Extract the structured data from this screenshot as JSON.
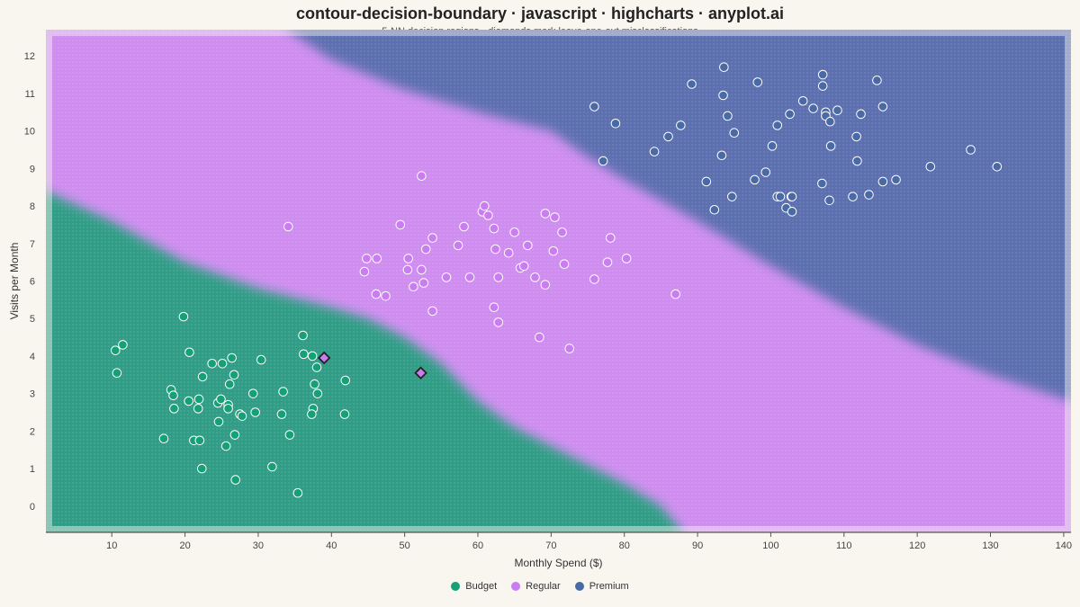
{
  "chart": {
    "title": "contour-decision-boundary · javascript · highcharts · anyplot.ai",
    "subtitle": "5-NN decision regions · diamonds mark leave-one-out misclassifications"
  },
  "chart_data": {
    "type": "scatter",
    "xlabel": "Monthly Spend ($)",
    "ylabel": "Visits per Month",
    "xlim": [
      1,
      141
    ],
    "ylim": [
      -0.7,
      12.7
    ],
    "xticks": [
      10,
      20,
      30,
      40,
      50,
      60,
      70,
      80,
      90,
      100,
      110,
      120,
      130,
      140
    ],
    "yticks": [
      0,
      1,
      2,
      3,
      4,
      5,
      6,
      7,
      8,
      9,
      10,
      11,
      12
    ],
    "grid": false,
    "legend_position": "bottom-center",
    "regions": {
      "description_free": true,
      "budget_regular_boundary": [
        [
          1,
          8.4
        ],
        [
          10,
          7.6
        ],
        [
          20,
          6.5
        ],
        [
          30,
          5.8
        ],
        [
          40,
          5.3
        ],
        [
          45,
          5.0
        ],
        [
          50,
          4.5
        ],
        [
          55,
          3.8
        ],
        [
          60,
          2.8
        ],
        [
          65,
          2.1
        ],
        [
          70,
          1.6
        ],
        [
          75,
          1.1
        ],
        [
          80,
          0.6
        ],
        [
          85,
          0.0
        ],
        [
          88,
          -0.7
        ]
      ],
      "regular_premium_boundary": [
        [
          34,
          12.7
        ],
        [
          40,
          11.9
        ],
        [
          50,
          11.1
        ],
        [
          60,
          10.5
        ],
        [
          70,
          10.0
        ],
        [
          75,
          9.3
        ],
        [
          80,
          8.7
        ],
        [
          90,
          7.6
        ],
        [
          100,
          6.4
        ],
        [
          110,
          5.3
        ],
        [
          120,
          4.3
        ],
        [
          130,
          3.5
        ],
        [
          141,
          2.8
        ]
      ]
    },
    "series": [
      {
        "name": "Budget",
        "color": "#16a075",
        "points": [
          [
            10.5,
            4.15
          ],
          [
            11.5,
            4.3
          ],
          [
            10.7,
            3.55
          ],
          [
            19.8,
            5.05
          ],
          [
            20.6,
            4.1
          ],
          [
            18.1,
            3.1
          ],
          [
            18.4,
            2.95
          ],
          [
            18.5,
            2.6
          ],
          [
            20.5,
            2.8
          ],
          [
            21.9,
            2.85
          ],
          [
            21.8,
            2.6
          ],
          [
            22.4,
            3.45
          ],
          [
            23.7,
            3.8
          ],
          [
            25.1,
            3.8
          ],
          [
            26.4,
            3.95
          ],
          [
            26.7,
            3.5
          ],
          [
            26.1,
            3.25
          ],
          [
            24.5,
            2.75
          ],
          [
            24.9,
            2.85
          ],
          [
            25.9,
            2.7
          ],
          [
            25.9,
            2.6
          ],
          [
            27.5,
            2.45
          ],
          [
            27.8,
            2.4
          ],
          [
            29.3,
            3.0
          ],
          [
            29.6,
            2.5
          ],
          [
            30.4,
            3.9
          ],
          [
            24.6,
            2.25
          ],
          [
            25.6,
            1.6
          ],
          [
            26.8,
            1.9
          ],
          [
            21.2,
            1.75
          ],
          [
            22.0,
            1.75
          ],
          [
            17.1,
            1.8
          ],
          [
            22.3,
            1.0
          ],
          [
            26.9,
            0.7
          ],
          [
            31.9,
            1.05
          ],
          [
            33.2,
            2.45
          ],
          [
            33.4,
            3.05
          ],
          [
            34.3,
            1.9
          ],
          [
            35.4,
            0.35
          ],
          [
            36.1,
            4.55
          ],
          [
            36.2,
            4.05
          ],
          [
            37.4,
            4.0
          ],
          [
            38.0,
            3.7
          ],
          [
            37.7,
            3.25
          ],
          [
            38.1,
            3.0
          ],
          [
            37.5,
            2.6
          ],
          [
            37.3,
            2.45
          ],
          [
            41.9,
            3.35
          ],
          [
            41.8,
            2.45
          ]
        ]
      },
      {
        "name": "Regular",
        "color": "#c97df0",
        "points": [
          [
            34.1,
            7.45
          ],
          [
            44.8,
            6.6
          ],
          [
            44.5,
            6.25
          ],
          [
            46.2,
            6.6
          ],
          [
            46.1,
            5.65
          ],
          [
            47.4,
            5.6
          ],
          [
            49.4,
            7.5
          ],
          [
            50.5,
            6.6
          ],
          [
            50.4,
            6.3
          ],
          [
            51.2,
            5.85
          ],
          [
            52.3,
            6.3
          ],
          [
            52.6,
            5.95
          ],
          [
            52.9,
            6.85
          ],
          [
            53.8,
            7.15
          ],
          [
            53.8,
            5.2
          ],
          [
            52.3,
            8.8
          ],
          [
            55.7,
            6.1
          ],
          [
            57.3,
            6.95
          ],
          [
            58.1,
            7.45
          ],
          [
            58.9,
            6.1
          ],
          [
            60.6,
            7.85
          ],
          [
            60.9,
            8.0
          ],
          [
            61.4,
            7.75
          ],
          [
            62.2,
            7.4
          ],
          [
            62.4,
            6.85
          ],
          [
            62.2,
            5.3
          ],
          [
            62.8,
            6.1
          ],
          [
            62.8,
            4.9
          ],
          [
            64.2,
            6.75
          ],
          [
            65.0,
            7.3
          ],
          [
            65.8,
            6.35
          ],
          [
            66.3,
            6.4
          ],
          [
            66.8,
            6.95
          ],
          [
            67.8,
            6.1
          ],
          [
            68.4,
            4.5
          ],
          [
            69.2,
            7.8
          ],
          [
            69.2,
            5.9
          ],
          [
            70.3,
            6.8
          ],
          [
            70.5,
            7.7
          ],
          [
            71.5,
            7.3
          ],
          [
            71.8,
            6.45
          ],
          [
            72.5,
            4.2
          ],
          [
            75.9,
            6.05
          ],
          [
            77.7,
            6.5
          ],
          [
            78.1,
            7.15
          ],
          [
            80.3,
            6.6
          ],
          [
            87.0,
            5.65
          ]
        ]
      },
      {
        "name": "Premium",
        "color": "#4a6aa5",
        "points": [
          [
            75.9,
            10.65
          ],
          [
            77.1,
            9.2
          ],
          [
            78.8,
            10.2
          ],
          [
            84.1,
            9.45
          ],
          [
            86.0,
            9.85
          ],
          [
            87.7,
            10.15
          ],
          [
            89.2,
            11.25
          ],
          [
            91.2,
            8.65
          ],
          [
            92.3,
            7.9
          ],
          [
            93.3,
            9.35
          ],
          [
            93.5,
            10.95
          ],
          [
            93.6,
            11.7
          ],
          [
            94.1,
            10.4
          ],
          [
            94.7,
            8.25
          ],
          [
            95.0,
            9.95
          ],
          [
            97.8,
            8.7
          ],
          [
            98.2,
            11.3
          ],
          [
            99.3,
            8.9
          ],
          [
            100.2,
            9.6
          ],
          [
            100.9,
            10.15
          ],
          [
            100.9,
            8.25
          ],
          [
            101.3,
            8.25
          ],
          [
            102.1,
            7.95
          ],
          [
            102.6,
            10.45
          ],
          [
            102.8,
            8.25
          ],
          [
            102.9,
            8.25
          ],
          [
            102.9,
            7.85
          ],
          [
            104.4,
            10.8
          ],
          [
            105.8,
            10.6
          ],
          [
            107.0,
            8.6
          ],
          [
            107.1,
            11.2
          ],
          [
            107.1,
            11.5
          ],
          [
            107.5,
            10.5
          ],
          [
            107.5,
            10.4
          ],
          [
            108.0,
            8.15
          ],
          [
            108.1,
            10.25
          ],
          [
            108.2,
            9.6
          ],
          [
            109.1,
            10.55
          ],
          [
            111.2,
            8.25
          ],
          [
            111.7,
            9.85
          ],
          [
            111.8,
            9.2
          ],
          [
            112.3,
            10.45
          ],
          [
            113.4,
            8.3
          ],
          [
            114.5,
            11.35
          ],
          [
            115.3,
            10.65
          ],
          [
            115.3,
            8.65
          ],
          [
            117.1,
            8.7
          ],
          [
            121.8,
            9.05
          ],
          [
            127.3,
            9.5
          ],
          [
            130.9,
            9.05
          ]
        ]
      },
      {
        "name": "",
        "marker": "diamond",
        "color": "#c97df0",
        "points": [
          [
            39.0,
            3.95
          ],
          [
            52.2,
            3.55
          ]
        ]
      }
    ]
  },
  "legend": {
    "items": [
      {
        "label": "Budget",
        "color": "#16a075"
      },
      {
        "label": "Regular",
        "color": "#c97df0"
      },
      {
        "label": "Premium",
        "color": "#4a6aa5"
      }
    ]
  }
}
